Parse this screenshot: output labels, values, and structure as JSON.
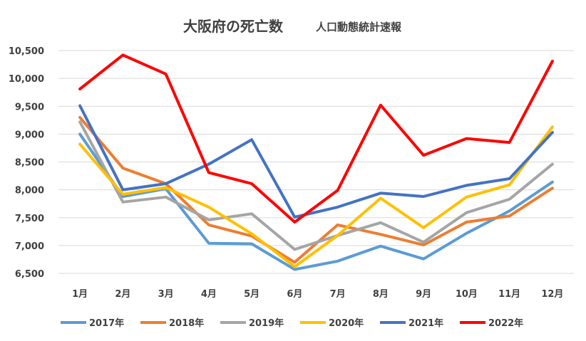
{
  "chart_data": {
    "type": "line",
    "title": "大阪府の死亡数",
    "subtitle": "人口動態統計速報",
    "categories": [
      "1月",
      "2月",
      "3月",
      "4月",
      "5月",
      "6月",
      "7月",
      "8月",
      "9月",
      "10月",
      "11月",
      "12月"
    ],
    "ylim": [
      6500,
      10500
    ],
    "yticks": [
      6500,
      7000,
      7500,
      8000,
      8500,
      9000,
      9500,
      10000,
      10500
    ],
    "ytick_labels": [
      "6,500",
      "7,000",
      "7,500",
      "8,000",
      "8,500",
      "9,000",
      "9,500",
      "10,000",
      "10,500"
    ],
    "grid": "horizontal",
    "legend_position": "bottom",
    "series": [
      {
        "name": "2017年",
        "color": "#5b9bd5",
        "values": [
          9000,
          7880,
          8020,
          7040,
          7030,
          6570,
          6720,
          6990,
          6760,
          7220,
          7620,
          8140
        ]
      },
      {
        "name": "2018年",
        "color": "#ed7d31",
        "values": [
          9300,
          8390,
          8110,
          7370,
          7170,
          6700,
          7370,
          7200,
          7010,
          7420,
          7530,
          8030
        ]
      },
      {
        "name": "2019年",
        "color": "#a5a5a5",
        "values": [
          9220,
          7780,
          7870,
          7460,
          7570,
          6930,
          7180,
          7410,
          7060,
          7590,
          7830,
          8460
        ]
      },
      {
        "name": "2020年",
        "color": "#ffc000",
        "values": [
          8820,
          7920,
          8040,
          7690,
          7210,
          6620,
          7180,
          7850,
          7320,
          7870,
          8090,
          9130
        ]
      },
      {
        "name": "2021年",
        "color": "#4472c4",
        "values": [
          9510,
          8000,
          8110,
          8460,
          8900,
          7510,
          7690,
          7940,
          7880,
          8080,
          8200,
          9030
        ]
      },
      {
        "name": "2022年",
        "color": "#ff0000",
        "values": [
          9810,
          10420,
          10080,
          8310,
          8110,
          7420,
          7990,
          9520,
          8620,
          8920,
          8850,
          10310
        ]
      }
    ]
  }
}
